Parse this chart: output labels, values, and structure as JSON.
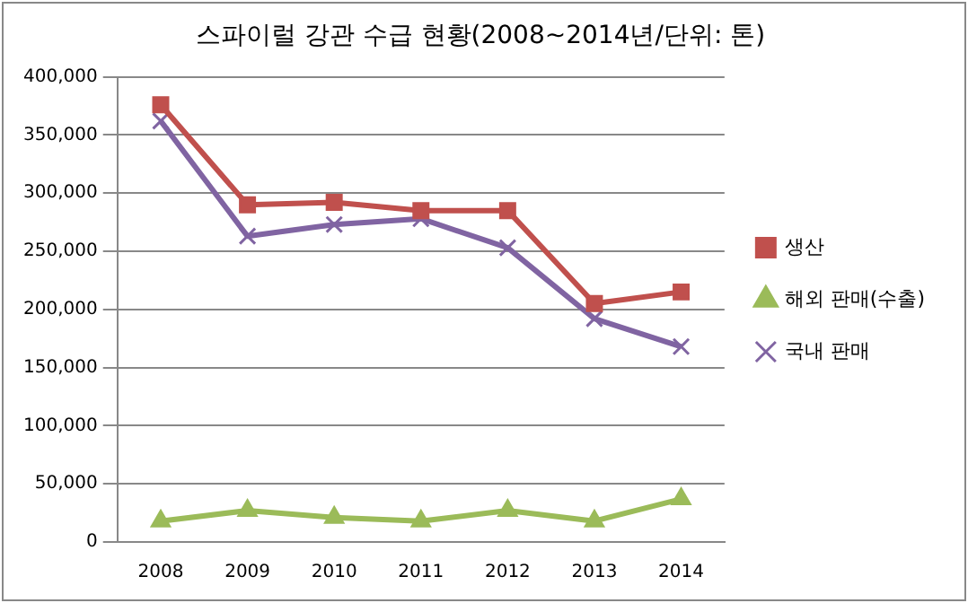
{
  "chart_data": {
    "type": "line",
    "title": "스파이럴 강관 수급 현황(2008~2014년/단위: 톤)",
    "categories": [
      "2008",
      "2009",
      "2010",
      "2011",
      "2012",
      "2013",
      "2014"
    ],
    "series": [
      {
        "name": "생산",
        "color": "#c0504d",
        "marker": "square",
        "values": [
          376000,
          290000,
          292000,
          285000,
          285000,
          205000,
          215000
        ]
      },
      {
        "name": "해외 판매(수출)",
        "color": "#9bbb59",
        "marker": "triangle",
        "values": [
          18000,
          27000,
          21000,
          18000,
          27000,
          18000,
          37000
        ]
      },
      {
        "name": "국내 판매",
        "color": "#8064a2",
        "marker": "cross",
        "values": [
          362000,
          263000,
          273000,
          278000,
          253000,
          192000,
          168000
        ]
      }
    ],
    "ylim": [
      0,
      400000
    ],
    "yticks": [
      0,
      {
        "value": 50000,
        "label": "50,000"
      },
      {
        "value": 100000,
        "label": "100,000"
      },
      {
        "value": 150000,
        "label": "150,000"
      },
      {
        "value": 200000,
        "label": "200,000"
      },
      {
        "value": 250000,
        "label": "250,000"
      },
      {
        "value": 300000,
        "label": "300,000"
      },
      {
        "value": 350000,
        "label": "350,000"
      },
      {
        "value": 400000,
        "label": "400,000"
      }
    ],
    "grid": "y",
    "legend": "right"
  }
}
